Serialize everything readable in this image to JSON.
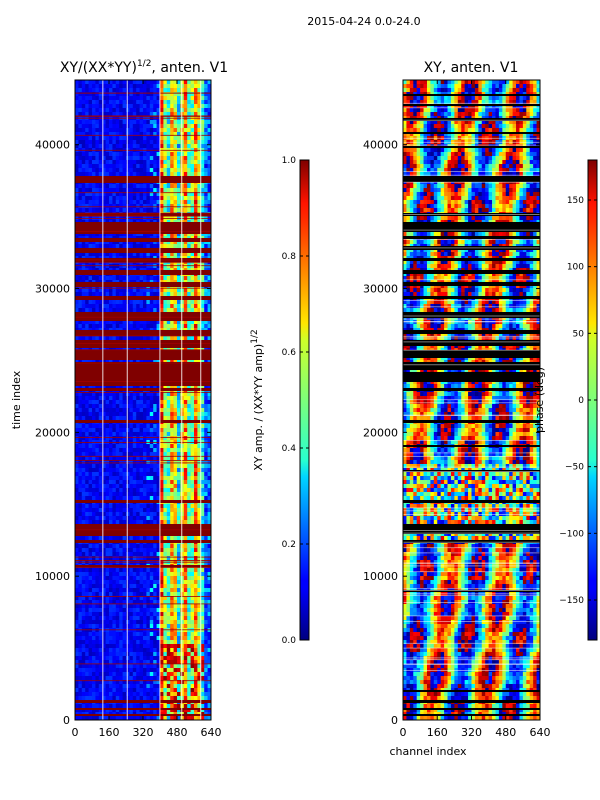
{
  "chart_data": [
    {
      "type": "heatmap",
      "suptitle": "2015-04-24 0.0-24.0",
      "title_main": "XY/(XX*YY)",
      "title_sup": "1/2",
      "title_tail": ", anten. V1",
      "xlabel": "",
      "ylabel": "time index",
      "xlim": [
        0,
        640
      ],
      "ylim": [
        0,
        44500
      ],
      "xticks": [
        0,
        160,
        320,
        480,
        640
      ],
      "yticks": [
        0,
        10000,
        20000,
        30000,
        40000
      ],
      "colorbar": {
        "label_main": "XY amp. / (XX*YY amp)",
        "label_sup": "1/2",
        "range": [
          0.0,
          1.0
        ],
        "ticks": [
          "0.0",
          "0.2",
          "0.4",
          "0.6",
          "0.8",
          "1.0"
        ]
      }
    },
    {
      "type": "heatmap",
      "title": "XY, anten. V1",
      "xlabel": "channel index",
      "ylabel": "",
      "xlim": [
        0,
        640
      ],
      "ylim": [
        0,
        44500
      ],
      "xticks": [
        0,
        160,
        320,
        480,
        640
      ],
      "yticks": [
        0,
        10000,
        20000,
        30000,
        40000
      ],
      "colorbar": {
        "label": "phase (deg)",
        "range": [
          -180,
          180
        ],
        "ticks": [
          "−150",
          "−100",
          "−50",
          "0",
          "50",
          "100",
          "150"
        ],
        "tick_values": [
          -150,
          -100,
          -50,
          0,
          50,
          100,
          150
        ]
      }
    }
  ]
}
